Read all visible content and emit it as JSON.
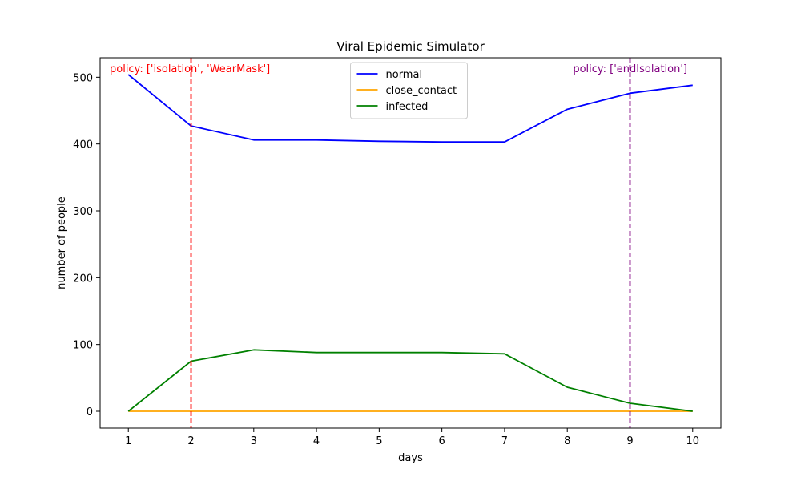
{
  "chart_data": {
    "type": "line",
    "title": "Viral Epidemic Simulator",
    "xlabel": "days",
    "ylabel": "number of people",
    "x": [
      1,
      2,
      3,
      4,
      5,
      6,
      7,
      8,
      9,
      10
    ],
    "xlim": [
      0.55,
      10.45
    ],
    "ylim": [
      -25.2,
      529.2
    ],
    "xticks": [
      1,
      2,
      3,
      4,
      5,
      6,
      7,
      8,
      9,
      10
    ],
    "yticks": [
      0,
      100,
      200,
      300,
      400,
      500
    ],
    "grid": false,
    "legend_position": "upper center",
    "series": [
      {
        "name": "normal",
        "color": "#0000ff",
        "values": [
          504,
          427,
          406,
          406,
          404,
          403,
          403,
          452,
          476,
          488
        ]
      },
      {
        "name": "close_contact",
        "color": "#ffa500",
        "values": [
          0,
          0,
          0,
          0,
          0,
          0,
          0,
          0,
          0,
          0
        ]
      },
      {
        "name": "infected",
        "color": "#008000",
        "values": [
          0,
          75,
          92,
          88,
          88,
          88,
          86,
          36,
          12,
          0
        ]
      }
    ],
    "vlines": [
      {
        "x": 2,
        "color": "#ff0000",
        "style": "dashed",
        "label": "policy: ['isolation', 'WearMask']",
        "label_align": "start"
      },
      {
        "x": 9,
        "color": "#800080",
        "style": "dashed",
        "label": "policy: ['endIsolation']",
        "label_align": "end"
      }
    ]
  }
}
